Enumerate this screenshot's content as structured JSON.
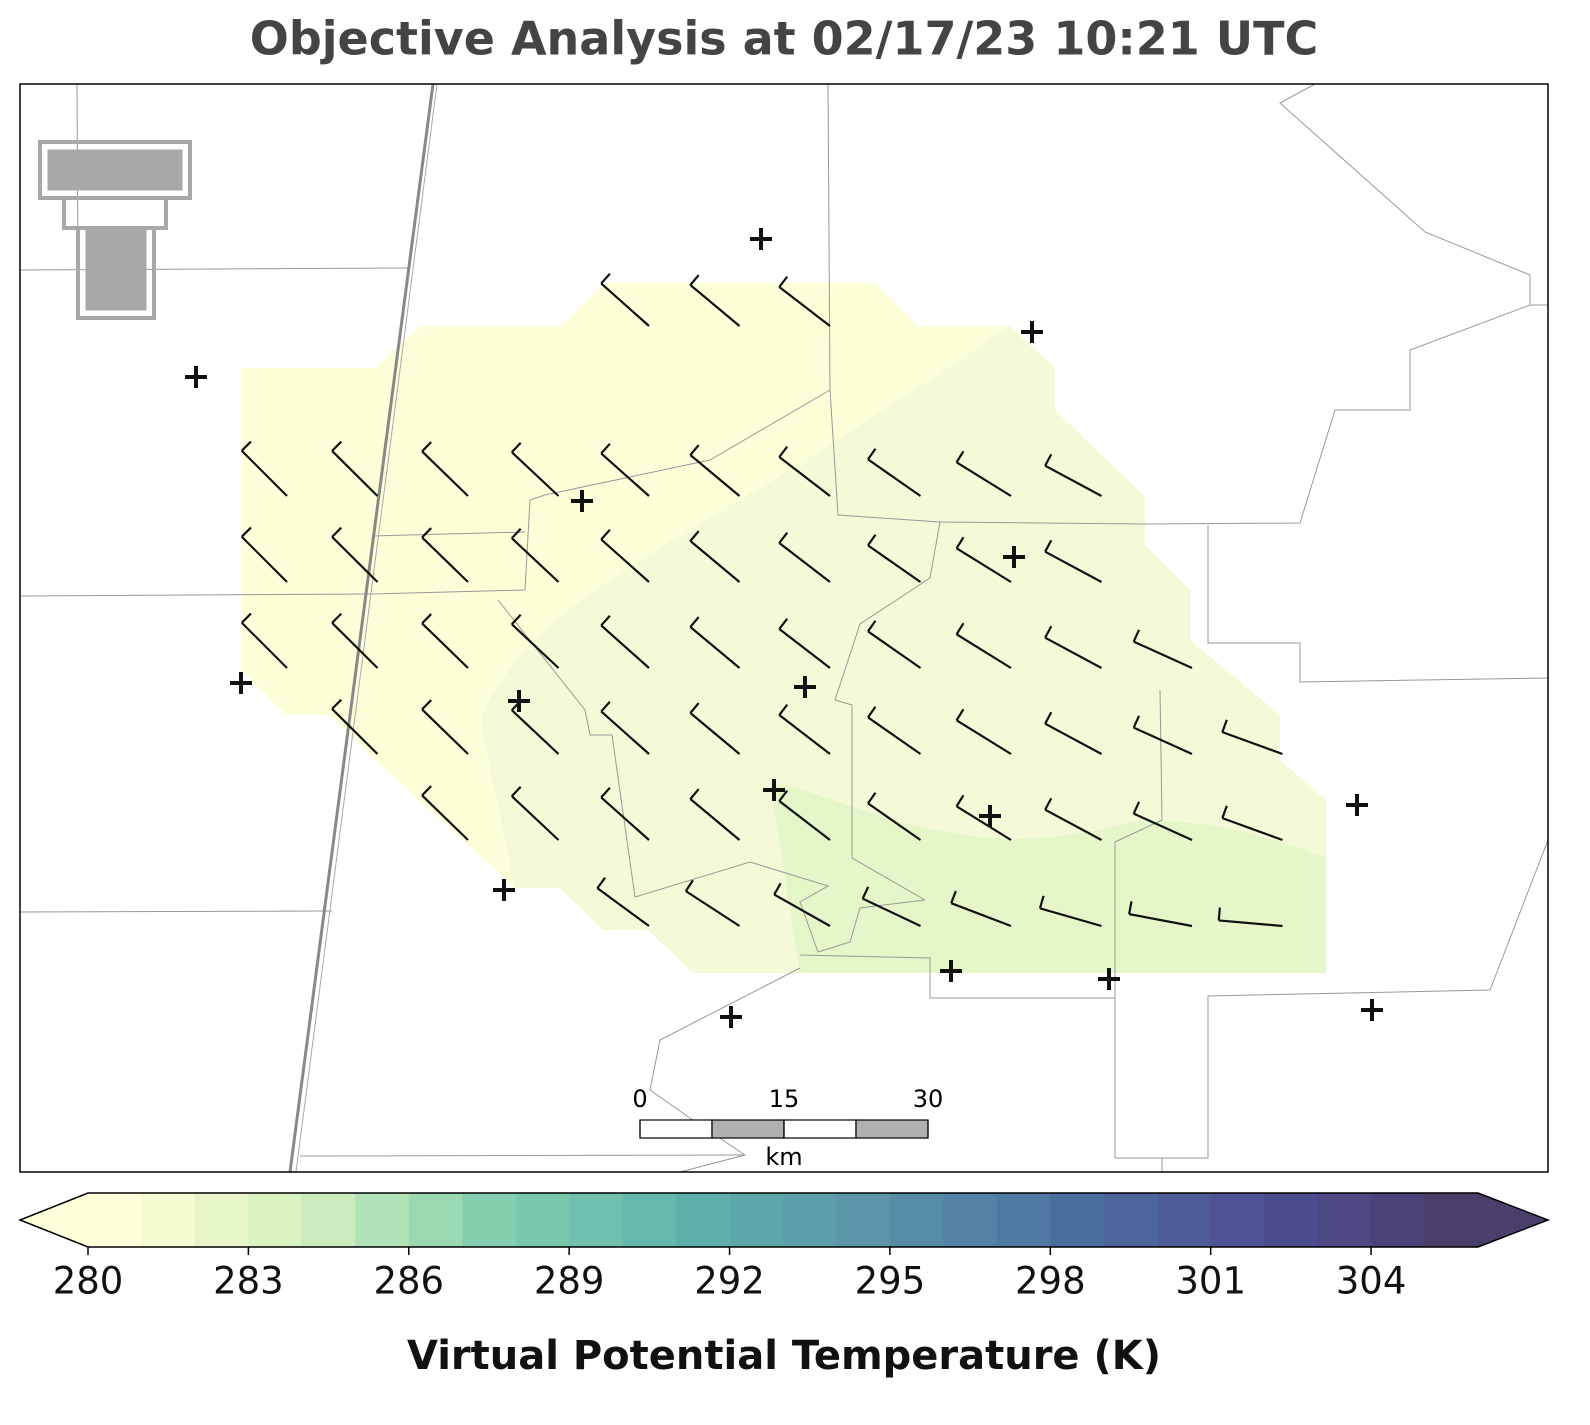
{
  "title": "Objective Analysis at 02/17/23 10:21 UTC",
  "colorbar": {
    "label": "Virtual Potential Temperature (K)",
    "lim": [
      280,
      306
    ],
    "ticks": [
      280,
      283,
      286,
      289,
      292,
      295,
      298,
      301,
      304
    ],
    "extend": "both",
    "colors": [
      "#ffffd9",
      "#d4efbd",
      "#80cfae",
      "#5fb2ad",
      "#5a93a8",
      "#4b6fa0",
      "#4e4f95",
      "#4a3f6b"
    ]
  },
  "scale_bar": {
    "ticks": [
      0,
      15,
      30
    ],
    "unit": "km"
  }
}
